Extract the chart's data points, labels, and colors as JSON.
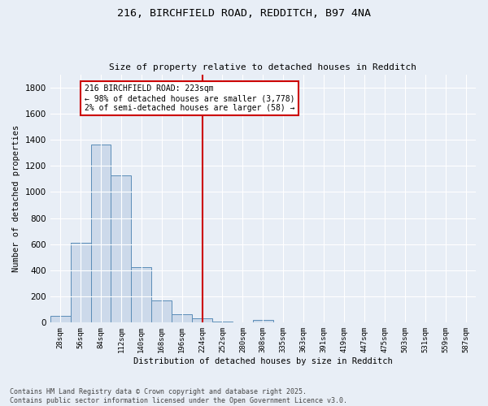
{
  "title1": "216, BIRCHFIELD ROAD, REDDITCH, B97 4NA",
  "title2": "Size of property relative to detached houses in Redditch",
  "xlabel": "Distribution of detached houses by size in Redditch",
  "ylabel": "Number of detached properties",
  "bin_labels": [
    "28sqm",
    "56sqm",
    "84sqm",
    "112sqm",
    "140sqm",
    "168sqm",
    "196sqm",
    "224sqm",
    "252sqm",
    "280sqm",
    "308sqm",
    "335sqm",
    "363sqm",
    "391sqm",
    "419sqm",
    "447sqm",
    "475sqm",
    "503sqm",
    "531sqm",
    "559sqm",
    "587sqm"
  ],
  "bar_heights": [
    50,
    608,
    1365,
    1125,
    425,
    170,
    65,
    35,
    10,
    0,
    18,
    0,
    0,
    0,
    0,
    0,
    0,
    0,
    0,
    0,
    0
  ],
  "bar_color": "#ccd9ea",
  "bar_edge_color": "#5b8db8",
  "vline_x": 7.0,
  "vline_color": "#cc0000",
  "annotation_text": "216 BIRCHFIELD ROAD: 223sqm\n← 98% of detached houses are smaller (3,778)\n2% of semi-detached houses are larger (58) →",
  "annotation_box_color": "#ffffff",
  "annotation_box_edge": "#cc0000",
  "ylim": [
    0,
    1900
  ],
  "yticks": [
    0,
    200,
    400,
    600,
    800,
    1000,
    1200,
    1400,
    1600,
    1800
  ],
  "background_color": "#e8eef6",
  "grid_color": "#ffffff",
  "footnote": "Contains HM Land Registry data © Crown copyright and database right 2025.\nContains public sector information licensed under the Open Government Licence v3.0."
}
